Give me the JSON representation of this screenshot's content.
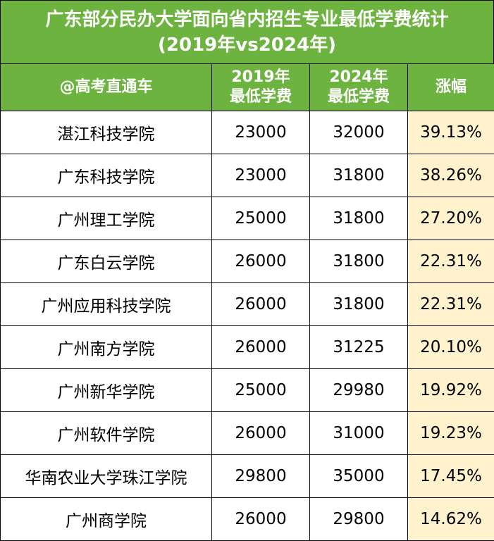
{
  "title": {
    "line1": "广东部分民办大学面向省内招生专业最低学费统计",
    "line2": "(2019年vs2024年)"
  },
  "headers": {
    "school": "@高考直通车",
    "y2019_line1": "2019年",
    "y2019_line2": "最低学费",
    "y2024_line1": "2024年",
    "y2024_line2": "最低学费",
    "rate": "涨幅"
  },
  "rows": [
    {
      "school": "湛江科技学院",
      "fee2019": "23000",
      "fee2024": "32000",
      "rate": "39.13%"
    },
    {
      "school": "广东科技学院",
      "fee2019": "23000",
      "fee2024": "31800",
      "rate": "38.26%"
    },
    {
      "school": "广州理工学院",
      "fee2019": "25000",
      "fee2024": "31800",
      "rate": "27.20%"
    },
    {
      "school": "广东白云学院",
      "fee2019": "26000",
      "fee2024": "31800",
      "rate": "22.31%"
    },
    {
      "school": "广州应用科技学院",
      "fee2019": "26000",
      "fee2024": "31800",
      "rate": "22.31%"
    },
    {
      "school": "广州南方学院",
      "fee2019": "26000",
      "fee2024": "31225",
      "rate": "20.10%"
    },
    {
      "school": "广州新华学院",
      "fee2019": "25000",
      "fee2024": "29980",
      "rate": "19.92%"
    },
    {
      "school": "广州软件学院",
      "fee2019": "26000",
      "fee2024": "31000",
      "rate": "19.23%"
    },
    {
      "school": "华南农业大学珠江学院",
      "fee2019": "29800",
      "fee2024": "35000",
      "rate": "17.45%"
    },
    {
      "school": "广州商学院",
      "fee2019": "26000",
      "fee2024": "29800",
      "rate": "14.62%"
    }
  ],
  "colors": {
    "header_green": "#6db33f",
    "rate_highlight": "#fff2cc"
  }
}
